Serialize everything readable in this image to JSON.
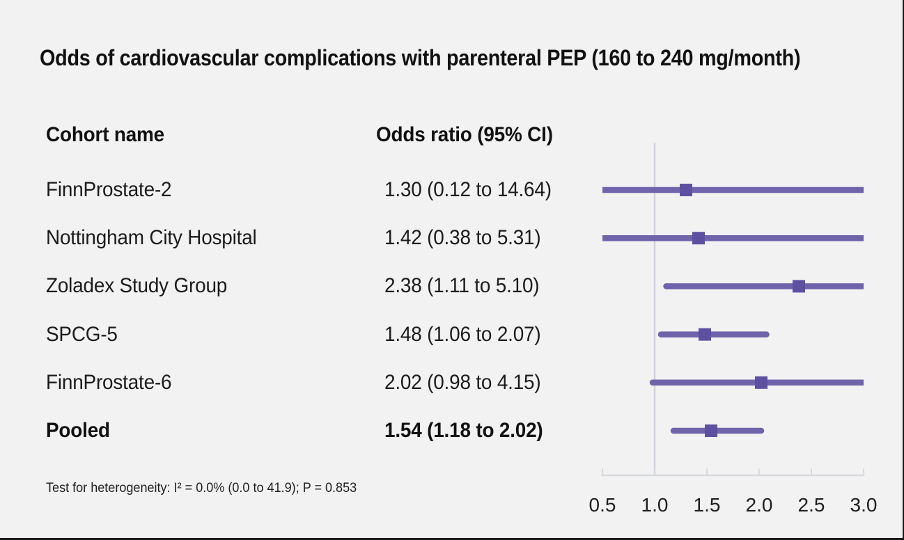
{
  "chart_data": {
    "type": "forest",
    "title": "Odds of cardiovascular complications with parenteral PEP (160 to 240 mg/month)",
    "columns": [
      "Cohort name",
      "Odds ratio (95% CI)"
    ],
    "rows": [
      {
        "label": "FinnProstate-2",
        "or": 1.3,
        "ci_low": 0.12,
        "ci_high": 14.64,
        "or_text": "1.30 (0.12 to 14.64)",
        "pooled": false
      },
      {
        "label": "Nottingham City Hospital",
        "or": 1.42,
        "ci_low": 0.38,
        "ci_high": 5.31,
        "or_text": "1.42 (0.38 to 5.31)",
        "pooled": false
      },
      {
        "label": "Zoladex Study Group",
        "or": 2.38,
        "ci_low": 1.11,
        "ci_high": 5.1,
        "or_text": "2.38 (1.11 to 5.10)",
        "pooled": false
      },
      {
        "label": "SPCG-5",
        "or": 1.48,
        "ci_low": 1.06,
        "ci_high": 2.07,
        "or_text": "1.48 (1.06 to 2.07)",
        "pooled": false
      },
      {
        "label": "FinnProstate-6",
        "or": 2.02,
        "ci_low": 0.98,
        "ci_high": 4.15,
        "or_text": "2.02 (0.98 to 4.15)",
        "pooled": false
      },
      {
        "label": "Pooled",
        "or": 1.54,
        "ci_low": 1.18,
        "ci_high": 2.02,
        "or_text": "1.54 (1.18 to 2.02)",
        "pooled": true
      }
    ],
    "x_axis": {
      "min": 0.5,
      "max": 3.0,
      "tick_values": [
        0.5,
        1.0,
        1.5,
        2.0,
        2.5,
        3.0
      ],
      "tick_labels": [
        "0.5",
        "1.0",
        "1.5",
        "2.0",
        "2.5",
        "3.0"
      ],
      "reference_value": 1.0
    },
    "footnote": "Test for heterogeneity: I² = 0.0% (0.0 to 41.9); P = 0.853",
    "legend": "none",
    "grid": "off",
    "colors": {
      "ci_line": "#6f63ac",
      "marker": "#5e50a1",
      "reference_line": "#cdd3dc",
      "axis_line": "#d7dade",
      "axis_text": "#1f1f1f",
      "text": "#1b1b1b",
      "background": "#f2f2f2"
    }
  }
}
